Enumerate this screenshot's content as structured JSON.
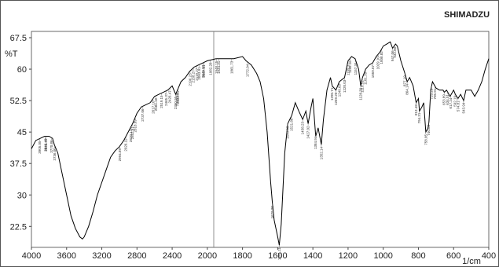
{
  "chart_data": {
    "type": "line",
    "brand": "SHIMADZU",
    "ylabel": "%T",
    "xlabel": "1/cm",
    "xlim": [
      4000,
      400
    ],
    "xticks": [
      4000,
      3600,
      3200,
      2800,
      2400,
      2000,
      1800,
      1600,
      1400,
      1200,
      1000,
      800,
      600,
      400
    ],
    "ylim": [
      17.5,
      69
    ],
    "yticks": [
      22.5,
      30,
      37.5,
      45,
      52.5,
      60,
      67.5
    ],
    "grid": false,
    "series": [
      {
        "color": "#000000",
        "x": [
          4000,
          3950,
          3900,
          3850,
          3800,
          3760,
          3740,
          3700,
          3650,
          3600,
          3550,
          3500,
          3450,
          3420,
          3400,
          3350,
          3300,
          3250,
          3200,
          3150,
          3100,
          3050,
          3000,
          2950,
          2900,
          2850,
          2800,
          2750,
          2700,
          2650,
          2600,
          2550,
          2500,
          2450,
          2400,
          2360,
          2340,
          2300,
          2250,
          2200,
          2150,
          2100,
          2050,
          2000,
          1950,
          1900,
          1850,
          1800,
          1780,
          1750,
          1720,
          1700,
          1680,
          1660,
          1640,
          1630,
          1620,
          1600,
          1591,
          1580,
          1560,
          1543,
          1520,
          1500,
          1480,
          1458,
          1440,
          1427,
          1410,
          1400,
          1384,
          1370,
          1352,
          1340,
          1320,
          1300,
          1290,
          1269,
          1250,
          1220,
          1200,
          1180,
          1160,
          1140,
          1128,
          1118,
          1100,
          1080,
          1060,
          1040,
          1020,
          1000,
          980,
          960,
          947,
          930,
          920,
          900,
          877,
          864,
          850,
          830,
          813,
          800,
          794,
          780,
          770,
          758,
          745,
          740,
          730,
          720,
          700,
          680,
          660,
          653,
          640,
          620,
          600,
          590,
          575,
          560,
          543,
          530,
          500,
          480,
          460,
          440,
          420,
          400
        ],
        "values": [
          41,
          43,
          43.5,
          44,
          44,
          43.5,
          42,
          40,
          35,
          30,
          25,
          22,
          20,
          19.5,
          20,
          22.5,
          26,
          30,
          33,
          36,
          39,
          40.5,
          41.5,
          43,
          45,
          47,
          49.5,
          51,
          51.5,
          52,
          53.5,
          54,
          54.5,
          55,
          56,
          54,
          55,
          57,
          58,
          59.5,
          60.5,
          61,
          61.5,
          62,
          62.5,
          62.5,
          62.5,
          63,
          62,
          61,
          59,
          57,
          53,
          45,
          33,
          28,
          24,
          20,
          18,
          23,
          40,
          47,
          49,
          52,
          50,
          48,
          50,
          47,
          51,
          53,
          44,
          46,
          42,
          48,
          55,
          58,
          56,
          55,
          57,
          58,
          62,
          63,
          62.5,
          60,
          56,
          58,
          60,
          61,
          61.5,
          63,
          64,
          65.5,
          66,
          66.5,
          65,
          66,
          65.5,
          62,
          59,
          57,
          58,
          56,
          52,
          53,
          50,
          51,
          52,
          45,
          46,
          47.5,
          55,
          57,
          55.5,
          55,
          55,
          54.5,
          55,
          53.5,
          55,
          54,
          53,
          54,
          52.5,
          55,
          55,
          53.5,
          55,
          57,
          60,
          62.5
        ]
      }
    ],
    "peak_labels": [
      "3905.05",
      "3833.97",
      "3840.40",
      "3770.86",
      "3736.00",
      "2994.89",
      "2926.11",
      "2870.17",
      "2852.81",
      "2818.89",
      "2737.06",
      "2617.10",
      "2584.18",
      "2519.15",
      "2465.37",
      "2426.47",
      "2360.95",
      "2343.99",
      "2332.21",
      "2196.23",
      "2158.27",
      "2119.27",
      "2093.91",
      "2045.83",
      "2037.61",
      "1982.28",
      "1948.15",
      "1934.31",
      "1861.73",
      "1772.04",
      "1629.90",
      "1591.11",
      "1543.03",
      "1521.86",
      "1458.23",
      "1427.02",
      "1384.94",
      "1352.14",
      "1290.71",
      "1269.20",
      "1249.69",
      "1220.03",
      "1199.37",
      "1188.16",
      "1157.34",
      "1128.39",
      "1118.51",
      "1101.39",
      "1059.67",
      "1029.10",
      "1008.82",
      "947.06",
      "932.80",
      "877.19",
      "864.14",
      "813.48",
      "794.31",
      "758.05",
      "740.69",
      "725.28",
      "705.91",
      "653.89",
      "634.51",
      "617.24",
      "592.19",
      "574.81",
      "543.94"
    ]
  }
}
